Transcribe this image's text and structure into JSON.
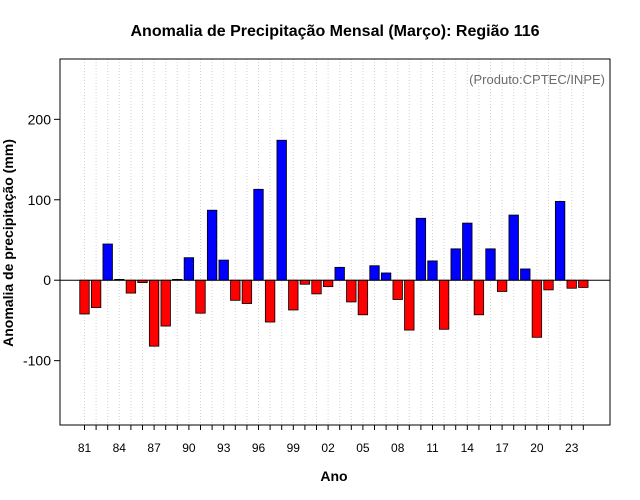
{
  "chart_data": {
    "type": "bar",
    "title": "Anomalia de Precipitação Mensal (Março): Região 116",
    "xlabel": "Ano",
    "ylabel": "Anomalia de precipitação (mm)",
    "credit": "(Produto:CPTEC/INPE)",
    "years": [
      1981,
      1982,
      1983,
      1984,
      1985,
      1986,
      1987,
      1988,
      1989,
      1990,
      1991,
      1992,
      1993,
      1994,
      1995,
      1996,
      1997,
      1998,
      1999,
      2000,
      2001,
      2002,
      2003,
      2004,
      2005,
      2006,
      2007,
      2008,
      2009,
      2010,
      2011,
      2012,
      2013,
      2014,
      2015,
      2016,
      2017,
      2018,
      2019,
      2020,
      2021,
      2022,
      2023,
      2024
    ],
    "values": [
      -42,
      -34,
      45,
      1,
      -16,
      -3,
      -82,
      -57,
      1,
      28,
      -41,
      87,
      25,
      -25,
      -29,
      113,
      -52,
      174,
      -37,
      -5,
      -17,
      -8,
      16,
      -27,
      -43,
      18,
      9,
      -24,
      -62,
      77,
      24,
      -61,
      39,
      71,
      -43,
      39,
      -14,
      81,
      14,
      -71,
      -12,
      98,
      -10,
      -9
    ],
    "x_tick_labels": [
      "81",
      "84",
      "87",
      "90",
      "93",
      "96",
      "99",
      "02",
      "05",
      "08",
      "11",
      "14",
      "17",
      "20",
      "23"
    ],
    "x_tick_years": [
      1981,
      1984,
      1987,
      1990,
      1993,
      1996,
      1999,
      2002,
      2005,
      2008,
      2011,
      2014,
      2017,
      2020,
      2023
    ],
    "y_ticks": [
      -100,
      0,
      100,
      200
    ],
    "ylim": [
      -180,
      275
    ],
    "grid": true,
    "colors": {
      "positive": "#0000ff",
      "negative": "#ff0000",
      "grid": "#d3d3d3",
      "axis": "#000000",
      "credit": "#6b6b6b"
    }
  }
}
